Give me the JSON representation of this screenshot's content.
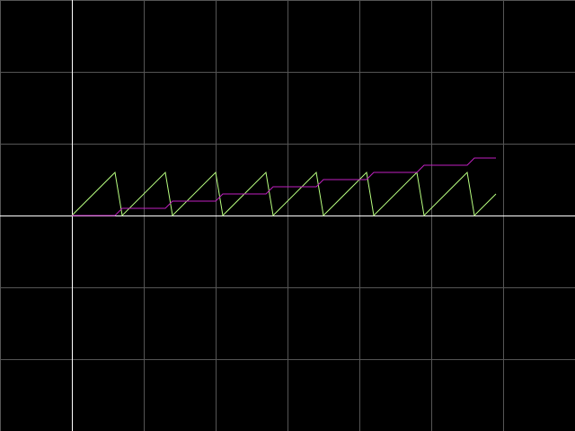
{
  "chart_data": {
    "type": "line",
    "title": "",
    "xlabel": "",
    "ylabel": "",
    "xlim": [
      -1,
      7
    ],
    "ylim": [
      -3,
      3
    ],
    "grid": true,
    "background": "#000000",
    "grid_color": "#555555",
    "axis_color": "#ffffff",
    "series": [
      {
        "color": "#b8ff80",
        "x": [
          0,
          0.6,
          0.7,
          1.3,
          1.4,
          2.0,
          2.1,
          2.7,
          2.8,
          3.4,
          3.5,
          4.1,
          4.2,
          4.8,
          4.9,
          5.5,
          5.6,
          5.9
        ],
        "y": [
          0,
          0.6,
          0,
          0.6,
          0,
          0.6,
          0,
          0.6,
          0,
          0.6,
          0,
          0.6,
          0,
          0.6,
          0,
          0.6,
          0,
          0.3
        ]
      },
      {
        "color": "#c020c0",
        "x": [
          0,
          0.6,
          0.7,
          1.3,
          1.4,
          2.0,
          2.1,
          2.7,
          2.8,
          3.4,
          3.5,
          4.1,
          4.2,
          4.8,
          4.9,
          5.5,
          5.6,
          5.9
        ],
        "y": [
          0,
          0,
          0.1,
          0.1,
          0.2,
          0.2,
          0.3,
          0.3,
          0.4,
          0.4,
          0.5,
          0.5,
          0.6,
          0.6,
          0.7,
          0.7,
          0.8,
          0.8
        ]
      }
    ]
  }
}
